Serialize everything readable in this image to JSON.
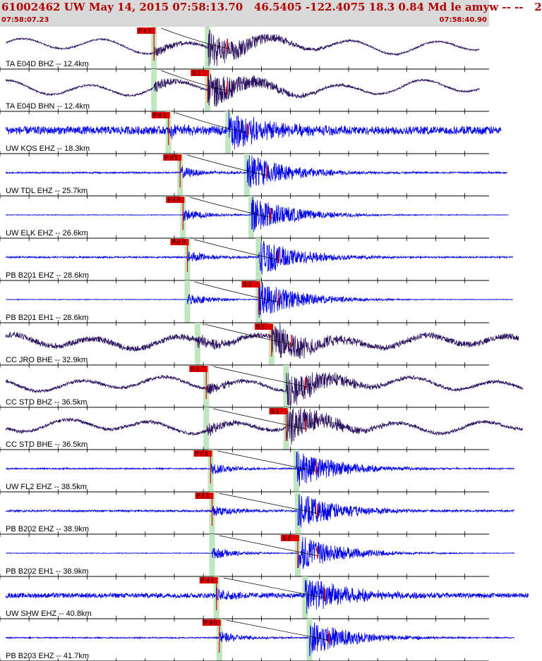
{
  "header": {
    "title": "61002462 UW May 14, 2015 07:58:13.70   46.5405 -122.4075 18.3 0.84 Md le amyw -- --   2",
    "time_start": "07:58:07.23",
    "time_end": "07:58:40.90"
  },
  "colors": {
    "trace_broadband": "#2a0f5e",
    "trace_short_period": "#0000e6",
    "pick": "#e00000",
    "pick_window": "#bfe6bf",
    "grid": "#000000"
  },
  "chart_data": {
    "type": "line",
    "title": "61002462 UW May 14, 2015 07:58:13.70",
    "x_range": [
      "07:58:07.23",
      "07:58:40.90"
    ],
    "channels": [
      {
        "label": "TA E04D BHZ -- 12.4km",
        "color": "broadband",
        "pick": "P c 1",
        "p_time": 10.6,
        "s_time": 14.3,
        "amp": 0.35,
        "noise": 0.05,
        "end": 33.0
      },
      {
        "label": "TA E04D BHN -- 12.4km",
        "color": "broadband",
        "pick": "S 1",
        "p_time": 10.6,
        "s_time": 14.3,
        "amp": 0.35,
        "noise": 0.06,
        "end": 33.0
      },
      {
        "label": "UW KOS EHZ -- 18.3km",
        "color": "short",
        "pick": "P d 1",
        "p_time": 11.6,
        "s_time": 15.7,
        "amp": 0.0,
        "noise": 0.25,
        "end": 34.5
      },
      {
        "label": "UW TDL EHZ -- 25.7km",
        "color": "short",
        "pick": "P d 1",
        "p_time": 12.4,
        "s_time": 17.0,
        "amp": 0.0,
        "noise": 0.05,
        "end": 34.9
      },
      {
        "label": "UW ELK EHZ -- 26.6km",
        "color": "short",
        "pick": "P c 0",
        "p_time": 12.6,
        "s_time": 17.3,
        "amp": 0.0,
        "noise": 0.02,
        "end": 35.0
      },
      {
        "label": "PB B201 EHZ -- 28.6km",
        "color": "short",
        "pick": "P d 0",
        "p_time": 12.9,
        "s_time": 17.8,
        "amp": 0.0,
        "noise": 0.05,
        "end": 35.3
      },
      {
        "label": "PB B201 EH1 -- 28.6km",
        "color": "short",
        "pick": "S 1",
        "p_time": 12.9,
        "s_time": 17.8,
        "amp": 0.0,
        "noise": 0.02,
        "end": 35.3
      },
      {
        "label": "CC JRO BHE -- 32.9km",
        "color": "broadband",
        "pick": "S 2",
        "p_time": 13.6,
        "s_time": 18.7,
        "amp": 0.3,
        "noise": 0.18,
        "end": 35.7
      },
      {
        "label": "CC STD BHZ -- 36.5km",
        "color": "broadband",
        "pick": "P 1",
        "p_time": 14.2,
        "s_time": 19.7,
        "amp": 0.3,
        "noise": 0.1,
        "end": 36.0
      },
      {
        "label": "CC STD BHE -- 36.5km",
        "color": "broadband",
        "pick": "S 1",
        "p_time": 14.2,
        "s_time": 19.7,
        "amp": 0.3,
        "noise": 0.1,
        "end": 36.0
      },
      {
        "label": "UW FL2 EHZ -- 38.5km",
        "color": "short",
        "pick": "P c 0",
        "p_time": 14.5,
        "s_time": 20.4,
        "amp": 0.0,
        "noise": 0.04,
        "end": 35.4
      },
      {
        "label": "PB B202 EHZ -- 38.9km",
        "color": "short",
        "pick": "P c 1",
        "p_time": 14.6,
        "s_time": 20.5,
        "amp": 0.0,
        "noise": 0.06,
        "end": 35.4
      },
      {
        "label": "PB B202 EH1 -- 38.9km",
        "color": "short",
        "pick": "S 1",
        "p_time": 14.6,
        "s_time": 20.5,
        "amp": 0.0,
        "noise": 0.02,
        "end": 35.4
      },
      {
        "label": "UW SHW EHZ -- 40.8km",
        "color": "short",
        "pick": "P d 1",
        "p_time": 14.9,
        "s_time": 21.0,
        "amp": 0.0,
        "noise": 0.15,
        "end": 36.4
      },
      {
        "label": "PB B203 EHZ -- 41.7km",
        "color": "short",
        "pick": "P d 0",
        "p_time": 15.1,
        "s_time": 21.3,
        "amp": 0.0,
        "noise": 0.04,
        "end": 35.4
      }
    ]
  }
}
